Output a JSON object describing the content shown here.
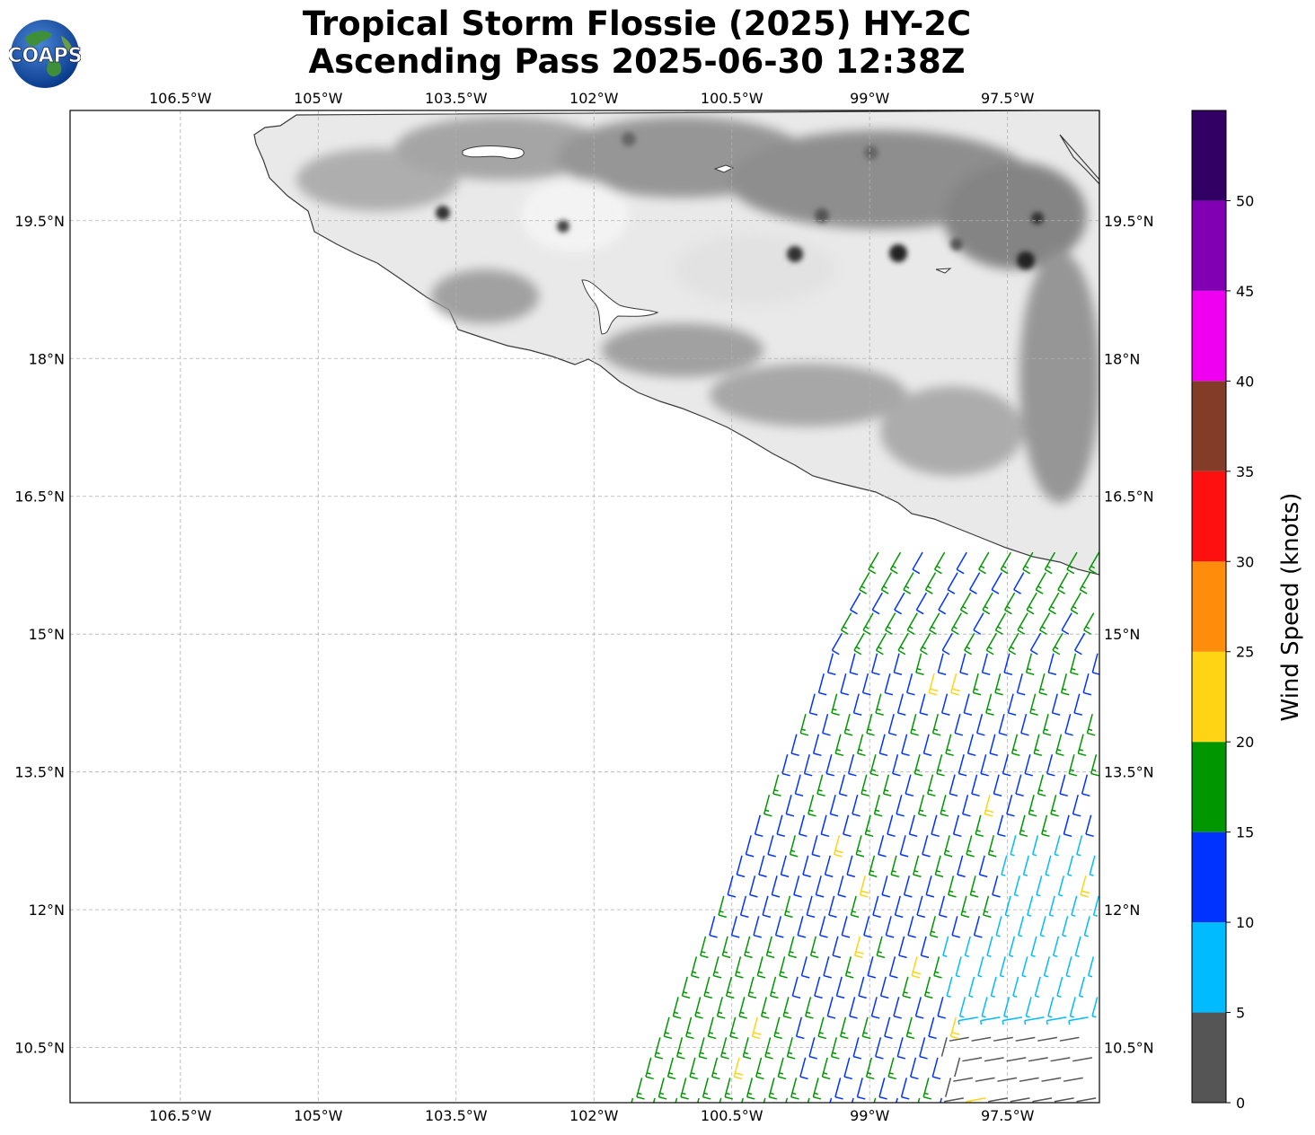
{
  "header": {
    "title_line1": "Tropical Storm Flossie (2025) HY-2C",
    "title_line2": "Ascending Pass 2025-06-30 12:38Z",
    "logo_text": "COAPS"
  },
  "map": {
    "lon_ticks": [
      "106.5°W",
      "105°W",
      "103.5°W",
      "102°W",
      "100.5°W",
      "99°W",
      "97.5°W"
    ],
    "lon_values": [
      -106.5,
      -105,
      -103.5,
      -102,
      -100.5,
      -99,
      -97.5
    ],
    "lat_ticks": [
      "19.5°N",
      "18°N",
      "16.5°N",
      "15°N",
      "13.5°N",
      "12°N",
      "10.5°N"
    ],
    "lat_values": [
      19.5,
      18,
      16.5,
      15,
      13.5,
      12,
      10.5
    ],
    "extent": {
      "lon_min": -107.7,
      "lon_max": -96.5,
      "lat_min": 9.9,
      "lat_max": 20.7
    },
    "gridlines": true,
    "land_shading": "grayscale terrain elevation"
  },
  "colorbar": {
    "label": "Wind Speed (knots)",
    "ticks": [
      "0",
      "5",
      "10",
      "15",
      "20",
      "25",
      "30",
      "35",
      "40",
      "45",
      "50"
    ],
    "bins": [
      {
        "min": 0,
        "max": 5,
        "color": "#555555"
      },
      {
        "min": 5,
        "max": 10,
        "color": "#00bbff"
      },
      {
        "min": 10,
        "max": 15,
        "color": "#0033ff"
      },
      {
        "min": 15,
        "max": 20,
        "color": "#009600"
      },
      {
        "min": 20,
        "max": 25,
        "color": "#ffd414"
      },
      {
        "min": 25,
        "max": 30,
        "color": "#ff8c0a"
      },
      {
        "min": 30,
        "max": 35,
        "color": "#ff1010"
      },
      {
        "min": 35,
        "max": 40,
        "color": "#823c28"
      },
      {
        "min": 40,
        "max": 45,
        "color": "#f000f0"
      },
      {
        "min": 45,
        "max": 50,
        "color": "#8200b4"
      },
      {
        "min": 50,
        "max": 55,
        "color": "#320064"
      }
    ]
  },
  "wind_field": {
    "units": "knots",
    "swath_lon_range": [
      -101.5,
      -96.5
    ],
    "swath_lat_range": [
      9.9,
      16.1
    ],
    "dominant_direction": "southwesterly",
    "speed_range_knots": [
      0,
      23
    ]
  }
}
